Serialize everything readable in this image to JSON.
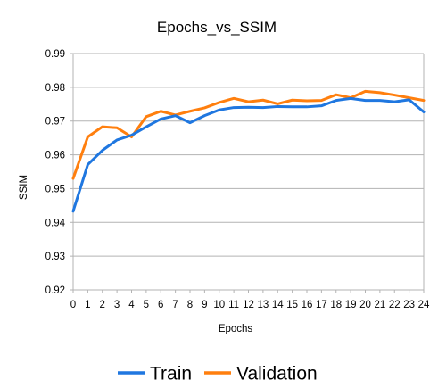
{
  "chart_data": {
    "type": "line",
    "title": "Epochs_vs_SSIM",
    "xlabel": "Epochs",
    "ylabel": "SSIM",
    "x": [
      0,
      1,
      2,
      3,
      4,
      5,
      6,
      7,
      8,
      9,
      10,
      11,
      12,
      13,
      14,
      15,
      16,
      17,
      18,
      19,
      20,
      21,
      22,
      23,
      24
    ],
    "ylim": [
      0.92,
      0.99
    ],
    "yticks": [
      "0.92",
      "0.93",
      "0.94",
      "0.95",
      "0.96",
      "0.97",
      "0.98",
      "0.99"
    ],
    "grid": "horizontal",
    "legend_position": "bottom",
    "series": [
      {
        "name": "Train",
        "color": "#1f77e0",
        "values": [
          0.9433,
          0.9571,
          0.9613,
          0.9644,
          0.9658,
          0.9683,
          0.9706,
          0.9716,
          0.9695,
          0.9716,
          0.9733,
          0.974,
          0.9741,
          0.974,
          0.9743,
          0.9742,
          0.9742,
          0.9745,
          0.9761,
          0.9767,
          0.9761,
          0.9761,
          0.9757,
          0.9763,
          0.9727
        ]
      },
      {
        "name": "Validation",
        "color": "#ff7f0e",
        "values": [
          0.953,
          0.9653,
          0.9683,
          0.968,
          0.9653,
          0.9713,
          0.9729,
          0.9718,
          0.9729,
          0.9739,
          0.9755,
          0.9767,
          0.9757,
          0.9762,
          0.9751,
          0.9762,
          0.976,
          0.9761,
          0.9778,
          0.9769,
          0.9788,
          0.9784,
          0.9777,
          0.9769,
          0.9761
        ]
      }
    ]
  }
}
